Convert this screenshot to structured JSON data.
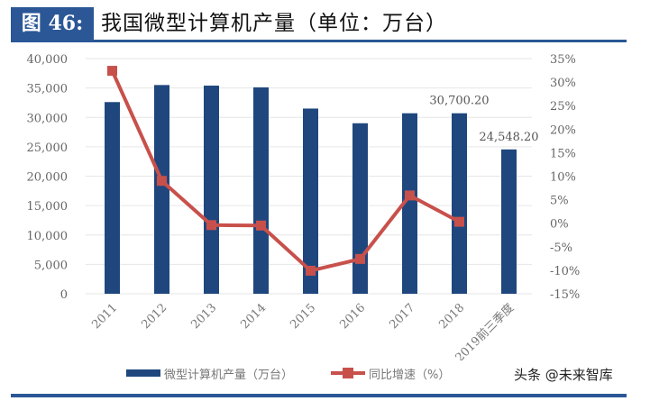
{
  "header": {
    "figure_label": "图 46:",
    "title": "我国微型计算机产量（单位：万台）"
  },
  "legend": {
    "bar_label": "微型计算机产量（万台）",
    "line_label": "同比增速（%）"
  },
  "watermark": "头条 @未来智库",
  "colors": {
    "bar": "#1f477e",
    "line": "#c8504b",
    "header_bg": "#2b5797",
    "grid": "#e6e6e6",
    "tick_text": "#666666"
  },
  "chart_data": {
    "type": "bar+line",
    "title": "我国微型计算机产量（单位：万台）",
    "categories": [
      "2011",
      "2012",
      "2013",
      "2014",
      "2015",
      "2016",
      "2017",
      "2018",
      "2019前三季度"
    ],
    "series": [
      {
        "name": "微型计算机产量（万台）",
        "type": "bar",
        "axis": "left",
        "values": [
          32600,
          35500,
          35400,
          35100,
          31500,
          29000,
          30700,
          30700.2,
          24548.2
        ]
      },
      {
        "name": "同比增速（%）",
        "type": "line",
        "axis": "right",
        "values": [
          32.4,
          9.0,
          -0.4,
          -0.5,
          -10.1,
          -7.6,
          5.9,
          0.3,
          null
        ]
      }
    ],
    "data_labels": [
      {
        "category": "2018",
        "text": "30,700.20"
      },
      {
        "category": "2019前三季度",
        "text": "24,548.20"
      }
    ],
    "left_axis": {
      "ylim": [
        0,
        40000
      ],
      "ticks": [
        "0",
        "5,000",
        "10,000",
        "15,000",
        "20,000",
        "25,000",
        "30,000",
        "35,000",
        "40,000"
      ]
    },
    "right_axis": {
      "ylim": [
        -15,
        35
      ],
      "ticks": [
        "-15%",
        "-10%",
        "-5%",
        "0%",
        "5%",
        "10%",
        "15%",
        "20%",
        "25%",
        "30%",
        "35%"
      ]
    },
    "grid": true,
    "legend_position": "bottom",
    "xlabel": "",
    "ylabel": ""
  }
}
